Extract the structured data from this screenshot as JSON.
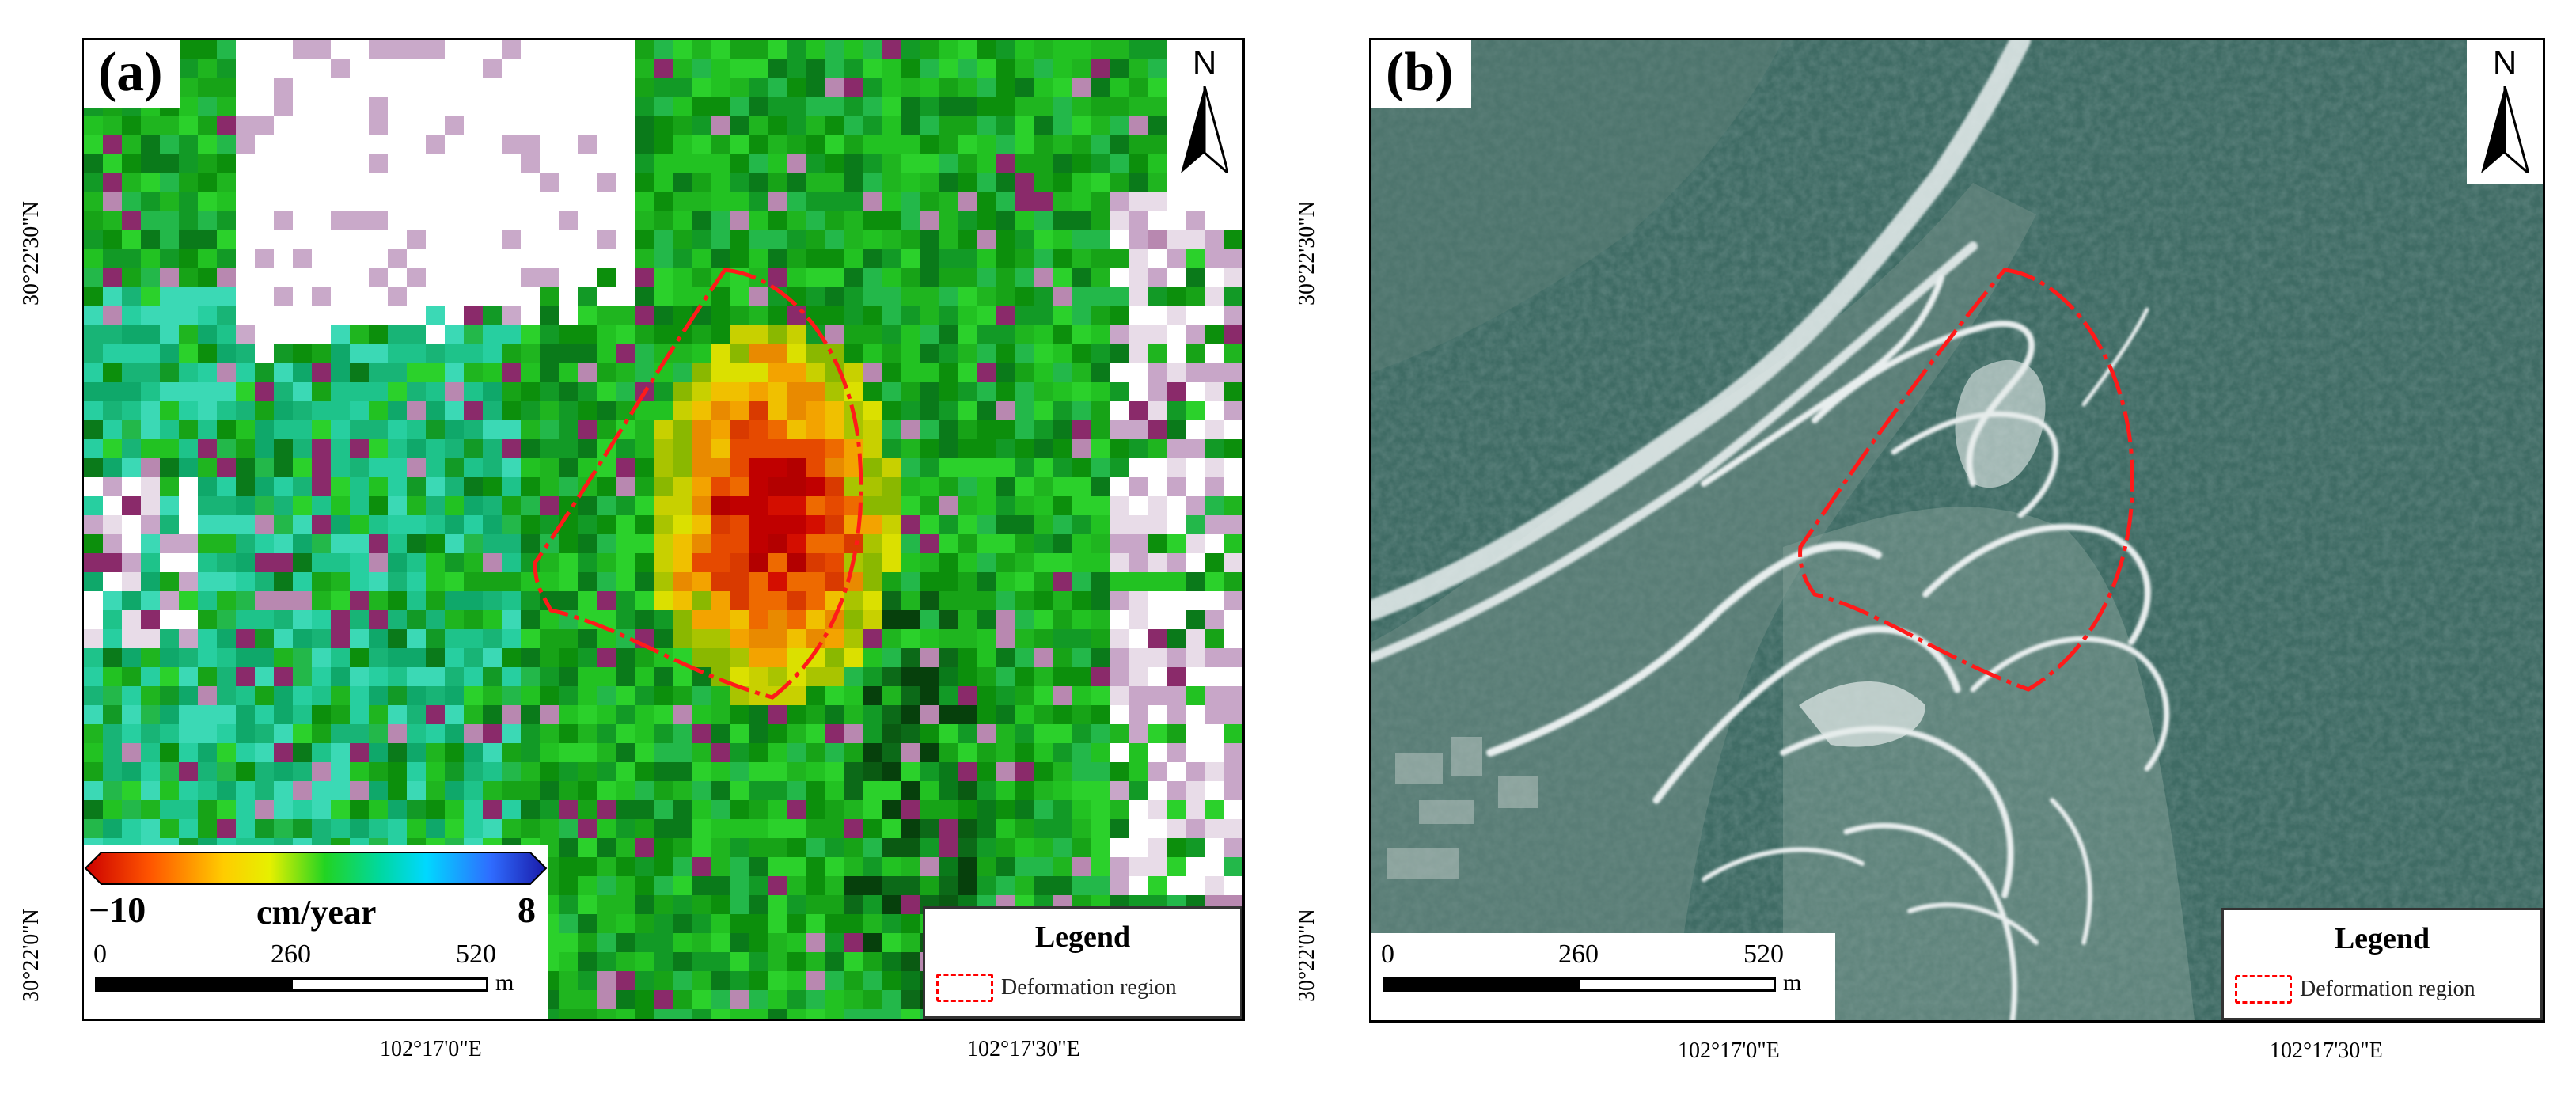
{
  "panel_a": {
    "label": "(a)",
    "north": "N",
    "lat_labels": [
      "30°22'30\"N",
      "30°22'0\"N"
    ],
    "lon_labels": [
      "102°17'0\"E",
      "102°17'30\"E"
    ],
    "colorbar": {
      "min": "−10",
      "max": "8",
      "unit": "cm/year",
      "colors": [
        "#cc0000",
        "#ff5500",
        "#ffcc00",
        "#e6f000",
        "#22d422",
        "#00d8a0",
        "#00d8ff",
        "#2f6cff",
        "#1a1aa8"
      ]
    },
    "scale": {
      "ticks": [
        "0",
        "260",
        "520"
      ],
      "unit": "m"
    },
    "legend": {
      "title": "Legend",
      "entry": "Deformation region"
    }
  },
  "panel_b": {
    "label": "(b)",
    "north": "N",
    "lat_labels": [
      "30°22'30\"N",
      "30°22'0\"N"
    ],
    "lon_labels": [
      "102°17'0\"E",
      "102°17'30\"E"
    ],
    "scale": {
      "ticks": [
        "0",
        "260",
        "520"
      ],
      "unit": "m"
    },
    "legend": {
      "title": "Legend",
      "entry": "Deformation region"
    }
  },
  "colors": {
    "deformation_outline": "#ff1a1a",
    "stable_green": "#1fb51f",
    "water_mask": "#ffffff",
    "satellite_forest": "#3d6a62"
  }
}
